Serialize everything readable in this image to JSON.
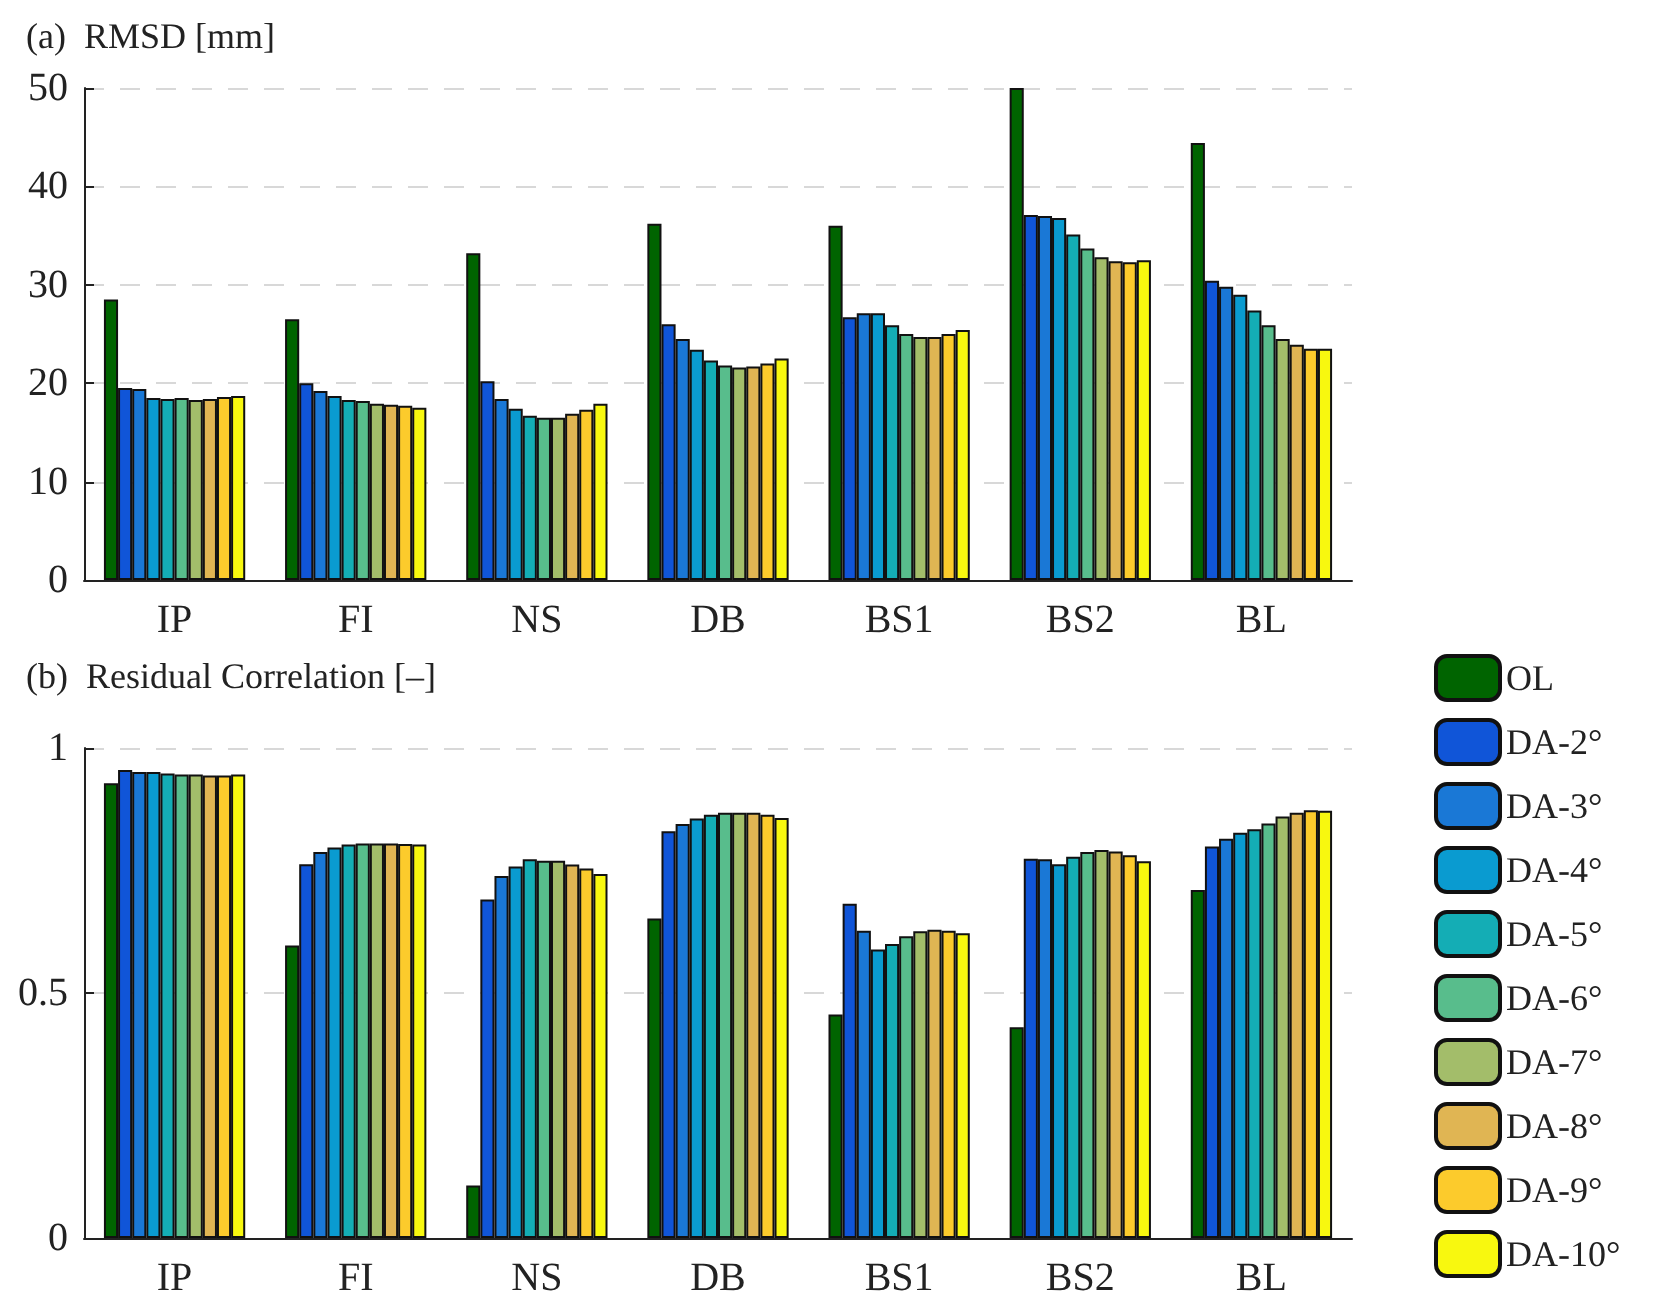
{
  "chart_data": [
    {
      "type": "bar",
      "title": "(a)  RMSD [mm]",
      "categories": [
        "IP",
        "FI",
        "NS",
        "DB",
        "BS1",
        "BS2",
        "BL"
      ],
      "ylim": [
        0,
        50
      ],
      "yticks": [
        0,
        10,
        20,
        30,
        40,
        50
      ],
      "grid": "y",
      "legend": false,
      "series": [
        {
          "color": "#006400",
          "values": [
            28.5,
            26.5,
            33.2,
            36.2,
            36.0,
            50,
            44.4
          ]
        },
        {
          "color": "#1055d8",
          "values": [
            19.5,
            20.0,
            20.2,
            26.0,
            26.7,
            37.1,
            30.4
          ]
        },
        {
          "color": "#1a78d6",
          "values": [
            19.4,
            19.2,
            18.4,
            24.5,
            27.1,
            37.0,
            29.8
          ]
        },
        {
          "color": "#0a9bd0",
          "values": [
            18.5,
            18.7,
            17.4,
            23.4,
            27.1,
            36.8,
            29.0
          ]
        },
        {
          "color": "#14adb5",
          "values": [
            18.4,
            18.3,
            16.7,
            22.3,
            25.9,
            35.1,
            27.4
          ]
        },
        {
          "color": "#58bd8c",
          "values": [
            18.5,
            18.2,
            16.5,
            21.8,
            25.0,
            33.7,
            25.9
          ]
        },
        {
          "color": "#a3bd6a",
          "values": [
            18.3,
            17.9,
            16.5,
            21.6,
            24.7,
            32.8,
            24.5
          ]
        },
        {
          "color": "#e0b553",
          "values": [
            18.4,
            17.8,
            16.9,
            21.7,
            24.7,
            32.4,
            23.9
          ]
        },
        {
          "color": "#fccb2c",
          "values": [
            18.6,
            17.7,
            17.3,
            22.0,
            25.0,
            32.3,
            23.5
          ]
        },
        {
          "color": "#f8f80f",
          "values": [
            18.7,
            17.5,
            17.9,
            22.5,
            25.4,
            32.5,
            23.5
          ]
        }
      ]
    },
    {
      "type": "bar",
      "title": "(b)  Residual Correlation [–]",
      "categories": [
        "IP",
        "FI",
        "NS",
        "DB",
        "BS1",
        "BS2",
        "BL"
      ],
      "ylim": [
        0,
        1
      ],
      "yticks": [
        0,
        0.5,
        1
      ],
      "grid": "y",
      "legend": "right",
      "series": [
        {
          "name": "OL",
          "color": "#006400",
          "values": [
            0.928,
            0.597,
            0.107,
            0.652,
            0.456,
            0.43,
            0.71
          ]
        },
        {
          "name": "DA-2°",
          "color": "#1055d8",
          "values": [
            0.955,
            0.763,
            0.691,
            0.83,
            0.682,
            0.774,
            0.799
          ]
        },
        {
          "name": "DA-3°",
          "color": "#1a78d6",
          "values": [
            0.951,
            0.788,
            0.739,
            0.845,
            0.627,
            0.773,
            0.815
          ]
        },
        {
          "name": "DA-4°",
          "color": "#0a9bd0",
          "values": [
            0.951,
            0.797,
            0.758,
            0.856,
            0.589,
            0.763,
            0.827
          ]
        },
        {
          "name": "DA-5°",
          "color": "#14adb5",
          "values": [
            0.948,
            0.803,
            0.773,
            0.864,
            0.6,
            0.778,
            0.834
          ]
        },
        {
          "name": "DA-6°",
          "color": "#58bd8c",
          "values": [
            0.946,
            0.805,
            0.77,
            0.868,
            0.616,
            0.788,
            0.846
          ]
        },
        {
          "name": "DA-7°",
          "color": "#a3bd6a",
          "values": [
            0.946,
            0.805,
            0.77,
            0.868,
            0.626,
            0.792,
            0.86
          ]
        },
        {
          "name": "DA-8°",
          "color": "#e0b553",
          "values": [
            0.944,
            0.805,
            0.762,
            0.868,
            0.629,
            0.789,
            0.868
          ]
        },
        {
          "name": "DA-9°",
          "color": "#fccb2c",
          "values": [
            0.944,
            0.804,
            0.754,
            0.864,
            0.627,
            0.781,
            0.873
          ]
        },
        {
          "name": "DA-10°",
          "color": "#f8f80f",
          "values": [
            0.946,
            0.803,
            0.743,
            0.857,
            0.622,
            0.769,
            0.872
          ]
        }
      ]
    }
  ]
}
